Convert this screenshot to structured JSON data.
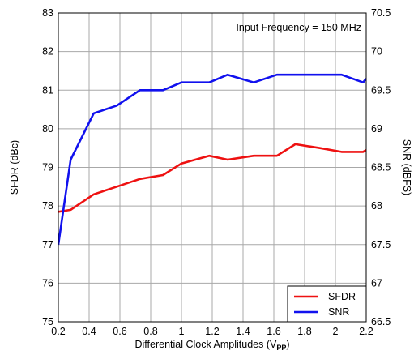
{
  "chart_data": {
    "type": "line",
    "annotation": "Input Frequency = 150 MHz",
    "xlabel_main": "Differential Clock Amplitudes (V",
    "xlabel_sub": "PP",
    "xlabel_close": ")",
    "ylabel": "SFDR (dBc)",
    "y2label": "SNR (dBFS)",
    "xlim": [
      0.2,
      2.2
    ],
    "ylim": [
      75,
      83
    ],
    "y2lim": [
      66.5,
      70.5
    ],
    "xticks": [
      "0.2",
      "0.4",
      "0.6",
      "0.8",
      "1",
      "1.2",
      "1.4",
      "1.6",
      "1.8",
      "2",
      "2.2"
    ],
    "yticks": [
      "75",
      "76",
      "77",
      "78",
      "79",
      "80",
      "81",
      "82",
      "83"
    ],
    "y2ticks": [
      "66.5",
      "67",
      "67.5",
      "68",
      "68.5",
      "69",
      "69.5",
      "70",
      "70.5"
    ],
    "grid": true,
    "legend_position": "bottom-right",
    "series": [
      {
        "name": "SFDR",
        "axis": "left",
        "color": "#ee1111",
        "x": [
          0.2,
          0.28,
          0.43,
          0.58,
          0.73,
          0.88,
          1.0,
          1.18,
          1.3,
          1.47,
          1.62,
          1.74,
          1.9,
          2.04,
          2.18,
          2.2
        ],
        "y": [
          77.85,
          77.9,
          78.3,
          78.5,
          78.7,
          78.8,
          79.1,
          79.3,
          79.2,
          79.3,
          79.3,
          79.6,
          79.5,
          79.4,
          79.4,
          79.45
        ]
      },
      {
        "name": "SNR",
        "axis": "right",
        "color": "#1111ee",
        "x": [
          0.2,
          0.28,
          0.43,
          0.58,
          0.73,
          0.88,
          1.0,
          1.18,
          1.3,
          1.47,
          1.62,
          1.74,
          1.9,
          2.04,
          2.18,
          2.2
        ],
        "y": [
          67.5,
          68.6,
          69.2,
          69.3,
          69.5,
          69.5,
          69.6,
          69.6,
          69.7,
          69.6,
          69.7,
          69.7,
          69.7,
          69.7,
          69.6,
          69.65
        ]
      }
    ]
  }
}
